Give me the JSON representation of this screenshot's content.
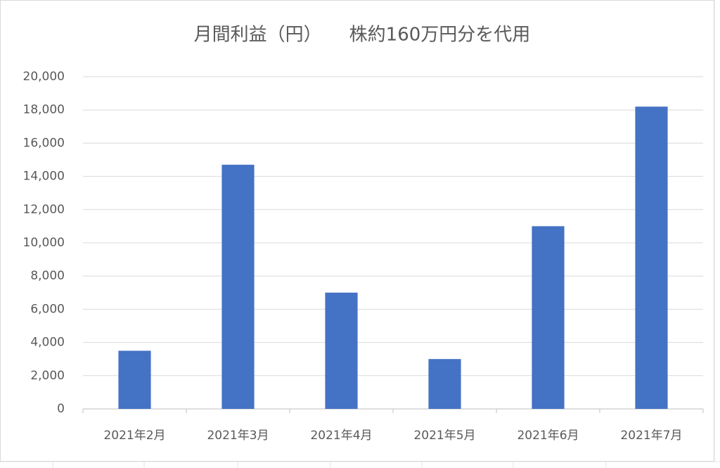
{
  "chart_data": {
    "type": "bar",
    "title": "月間利益（円）　　株約160万円分を代用",
    "categories": [
      "2021年2月",
      "2021年3月",
      "2021年4月",
      "2021年5月",
      "2021年6月",
      "2021年7月"
    ],
    "values": [
      3500,
      14700,
      7000,
      3000,
      11000,
      18200
    ],
    "color": "#4472c4",
    "ylim": [
      0,
      20000
    ],
    "yticks": [
      0,
      {
        "value": 2000,
        "label": "2,000"
      },
      {
        "value": 4000,
        "label": "4,000"
      },
      {
        "value": 6000,
        "label": "6,000"
      },
      {
        "value": 8000,
        "label": "8,000"
      },
      {
        "value": 10000,
        "label": "10,000"
      },
      {
        "value": 12000,
        "label": "12,000"
      },
      {
        "value": 14000,
        "label": "14,000"
      },
      {
        "value": 16000,
        "label": "16,000"
      },
      {
        "value": 18000,
        "label": "18,000"
      },
      {
        "value": 20000,
        "label": "20,000"
      }
    ],
    "grid": true
  }
}
